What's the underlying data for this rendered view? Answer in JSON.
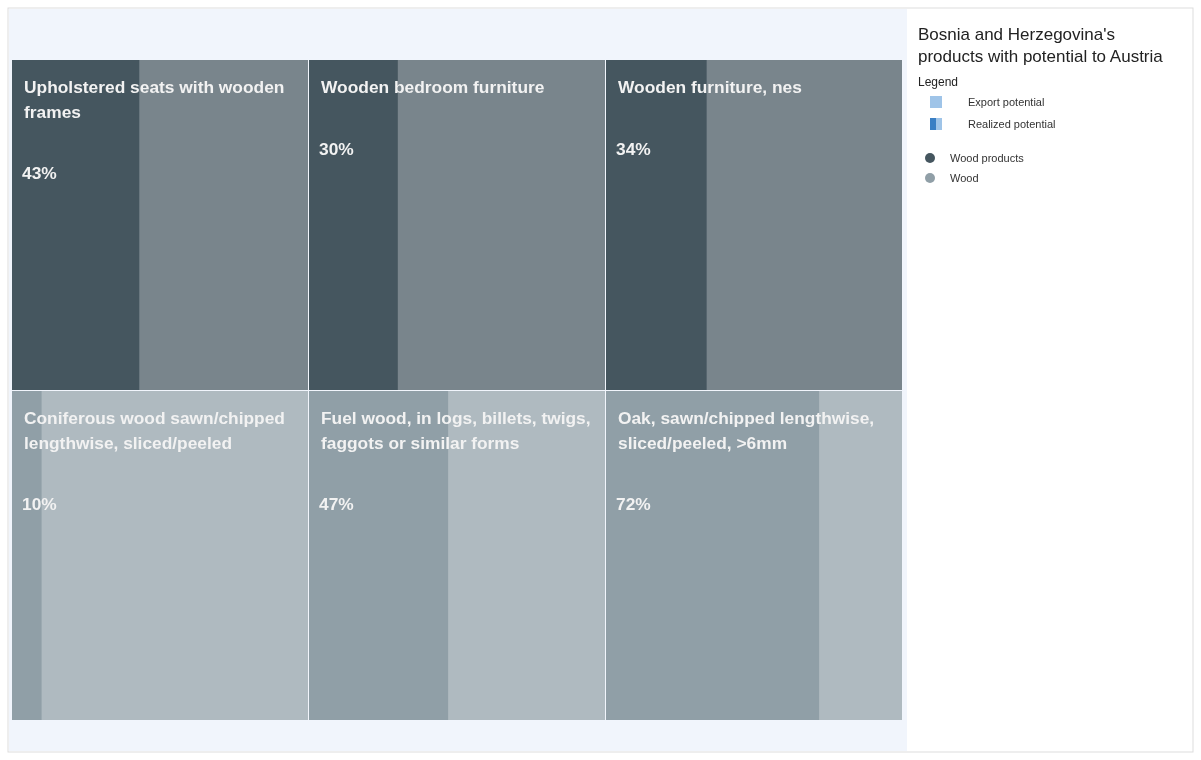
{
  "chart_data": {
    "type": "other",
    "title": "Bosnia and Herzegovina's products with potential to Austria",
    "legend_title": "Legend",
    "legend": "right",
    "annotations": [
      "Export potential",
      "Realized potential"
    ],
    "categories": [
      "Upholstered seats with wooden frames",
      "Wooden bedroom furniture",
      "Wooden furniture, nes",
      "Coniferous wood sawn/chipped lengthwise, sliced/peeled",
      "Fuel wood, in logs, billets, twigs, faggots or similar forms",
      "Oak, sawn/chipped lengthwise, sliced/peeled, >6mm"
    ],
    "series": [
      {
        "name": "Wood products",
        "color": "#45565f",
        "values": [
          43,
          30,
          34,
          null,
          null,
          null
        ],
        "value_labels": [
          "43%",
          "30%",
          "34%",
          null,
          null,
          null
        ]
      },
      {
        "name": "Wood",
        "color": "#909fa7",
        "values": [
          null,
          null,
          null,
          10,
          47,
          72
        ],
        "value_labels": [
          null,
          null,
          null,
          "10%",
          "47%",
          "72%"
        ]
      }
    ]
  }
}
